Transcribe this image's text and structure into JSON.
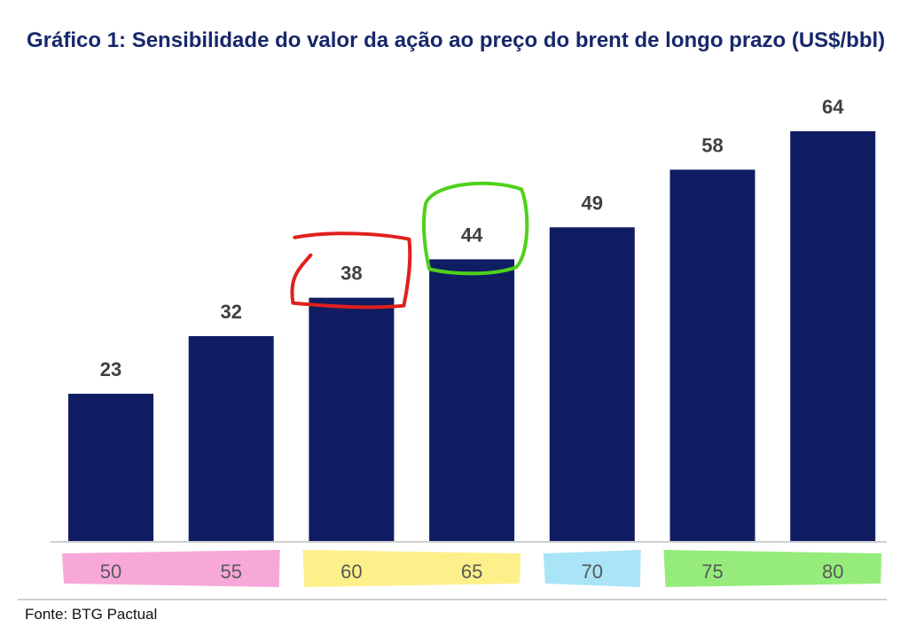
{
  "title": "Gráfico 1: Sensibilidade do valor da ação ao preço do brent de longo prazo (US$/bbl)",
  "source": "Fonte: BTG Pactual",
  "colors": {
    "bar": "#101d63",
    "label": "#404040",
    "tick": "#595959",
    "axis": "#d0d0d0",
    "title": "#17286b"
  },
  "chart_data": {
    "type": "bar",
    "title": "Gráfico 1: Sensibilidade do valor da ação ao preço do brent de longo prazo (US$/bbl)",
    "categories": [
      "50",
      "55",
      "60",
      "65",
      "70",
      "75",
      "80"
    ],
    "values": [
      23,
      32,
      38,
      44,
      49,
      58,
      64
    ],
    "xlabel": "",
    "ylabel": "",
    "ylim": [
      0,
      64
    ],
    "grid": false,
    "legend": "none",
    "annotations": {
      "highlighted_labels": [
        {
          "label": "38",
          "marker": "red hand-drawn box"
        },
        {
          "label": "44",
          "marker": "green hand-drawn box"
        }
      ],
      "category_highlights": [
        {
          "categories": [
            "50",
            "55"
          ],
          "color": "#f7a8d8"
        },
        {
          "categories": [
            "60",
            "65"
          ],
          "color": "#fdf08a"
        },
        {
          "categories": [
            "70"
          ],
          "color": "#a9e4f7"
        },
        {
          "categories": [
            "75",
            "80"
          ],
          "color": "#95ec7a"
        }
      ]
    }
  }
}
